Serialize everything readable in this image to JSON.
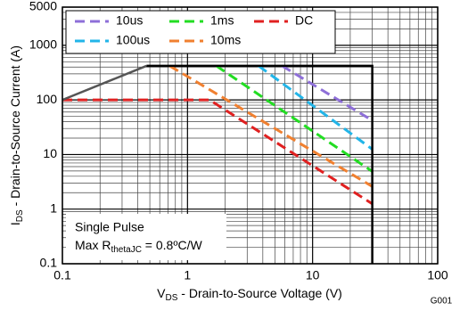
{
  "chart_data": {
    "type": "line",
    "xlabel_parts": [
      "V",
      "DS",
      " - Drain-to-Source Voltage (V)"
    ],
    "ylabel_parts": [
      "I",
      "DS",
      " - Drain-to-Source Current (A)"
    ],
    "annotation_lines": [
      "Single Pulse"
    ],
    "annotation_parts": [
      "Max R",
      "thetaJC",
      " = 0.8ºC/W"
    ],
    "note": "G001",
    "log_x": true,
    "log_y": true,
    "grid": true,
    "xlim": [
      0.1,
      100
    ],
    "xticks": [
      0.1,
      1,
      10,
      100
    ],
    "ylim": [
      0.1,
      5000
    ],
    "yticks": [
      0.1,
      1,
      10,
      100,
      1000,
      5000
    ],
    "series": [
      {
        "name": "10us",
        "color": "#8e6fd8",
        "x": [
          5.7,
          30
        ],
        "values": [
          420,
          42
        ]
      },
      {
        "name": "100us",
        "color": "#22b5e8",
        "x": [
          3.7,
          30
        ],
        "values": [
          420,
          12.5
        ]
      },
      {
        "name": "1ms",
        "color": "#22dd22",
        "x": [
          1.7,
          30
        ],
        "values": [
          420,
          4.9
        ]
      },
      {
        "name": "10ms",
        "color": "#f08030",
        "x": [
          0.72,
          30
        ],
        "values": [
          420,
          2.6
        ]
      },
      {
        "name": "DC",
        "color": "#e02020",
        "x": [
          0.1,
          1.5,
          30
        ],
        "values": [
          100,
          100,
          1.25
        ]
      },
      {
        "color": "#555555",
        "x": [
          0.1,
          0.47
        ],
        "values": [
          100,
          420
        ]
      },
      {
        "color": "#000000",
        "x": [
          0.47,
          30,
          30
        ],
        "values": [
          420,
          420,
          0.1
        ]
      }
    ]
  }
}
